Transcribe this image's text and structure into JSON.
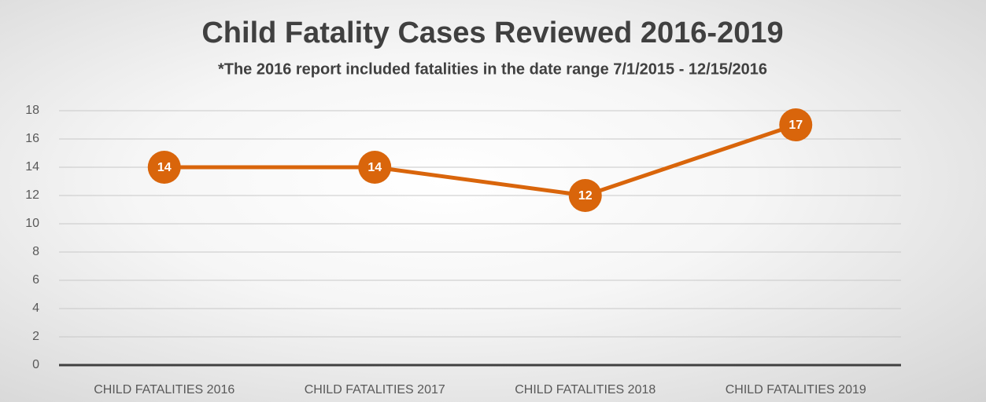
{
  "chart_data": {
    "type": "line",
    "title": "Child Fatality Cases Reviewed 2016-2019",
    "subtitle": "*The 2016 report included fatalities in the date range 7/1/2015 - 12/15/2016",
    "categories": [
      "CHILD FATALITIES 2016",
      "CHILD FATALITIES 2017",
      "CHILD FATALITIES 2018",
      "CHILD FATALITIES 2019"
    ],
    "values": [
      14,
      14,
      12,
      17
    ],
    "color": "#d9650b",
    "ylim": [
      0,
      18
    ],
    "yticks": [
      0,
      2,
      4,
      6,
      8,
      10,
      12,
      14,
      16,
      18
    ],
    "grid": true
  }
}
